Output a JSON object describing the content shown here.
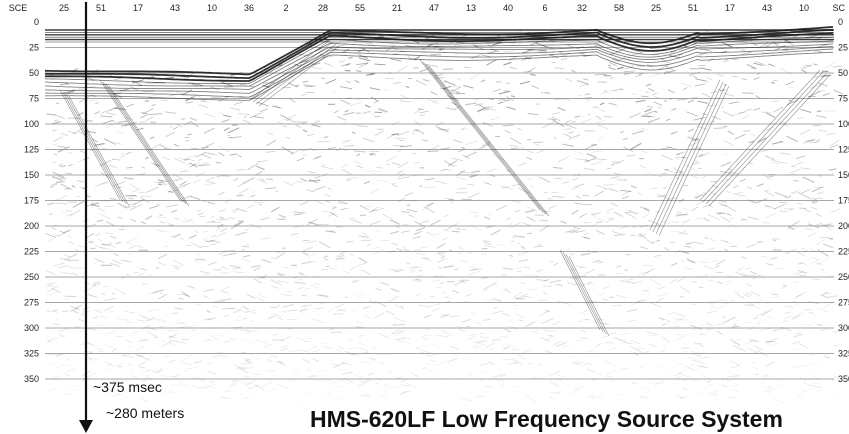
{
  "image": {
    "type": "sub-bottom seismic profile",
    "colors": {
      "background": "#ffffff",
      "ink": "#111111",
      "grid": "#8a8a8a",
      "strong_reflector": "#1a1a1a"
    }
  },
  "top_axis": {
    "label_left": "SCE",
    "label_right": "SC",
    "ticks": [
      "25",
      "51",
      "17",
      "43",
      "10",
      "36",
      "2",
      "28",
      "55",
      "21",
      "47",
      "13",
      "40",
      "6",
      "32",
      "58",
      "25",
      "51",
      "17",
      "43",
      "10"
    ]
  },
  "left_axis": {
    "unit": "msec",
    "ticks": [
      "0",
      "25",
      "50",
      "75",
      "100",
      "125",
      "150",
      "175",
      "200",
      "225",
      "250",
      "275",
      "300",
      "325",
      "350"
    ]
  },
  "right_axis": {
    "ticks": [
      "0",
      "25",
      "50",
      "75",
      "100",
      "125",
      "150",
      "175",
      "200",
      "225",
      "250",
      "275",
      "300",
      "325",
      "350"
    ]
  },
  "annotations": {
    "time_depth": "~375 msec",
    "depth": "~280 meters"
  },
  "caption": "HMS-620LF Low Frequency Source System"
}
